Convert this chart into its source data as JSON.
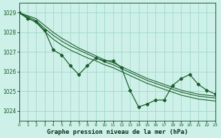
{
  "title": "Graphe pression niveau de la mer (hPa)",
  "bg_color": "#cdf0e8",
  "grid_color": "#a0d8c8",
  "line_color": "#1a5c2a",
  "x_ticks": [
    0,
    1,
    2,
    3,
    4,
    5,
    6,
    7,
    8,
    9,
    10,
    11,
    12,
    13,
    14,
    15,
    16,
    17,
    18,
    19,
    20,
    21,
    22,
    23
  ],
  "ylim": [
    1023.5,
    1029.5
  ],
  "yticks": [
    1024,
    1025,
    1026,
    1027,
    1028,
    1029
  ],
  "series_main": [
    1029.0,
    1028.7,
    1028.55,
    1028.1,
    1027.1,
    1026.85,
    1026.3,
    1025.85,
    1026.3,
    1026.7,
    1026.55,
    1026.55,
    1026.2,
    1025.05,
    1024.2,
    1024.35,
    1024.55,
    1024.55,
    1025.3,
    1025.65,
    1025.85,
    1025.35,
    1025.05,
    1024.85
  ],
  "series_ref1": [
    1029.0,
    1028.85,
    1028.7,
    1028.35,
    1028.0,
    1027.7,
    1027.45,
    1027.2,
    1027.0,
    1026.8,
    1026.6,
    1026.45,
    1026.25,
    1026.05,
    1025.85,
    1025.65,
    1025.5,
    1025.35,
    1025.2,
    1025.05,
    1024.95,
    1024.85,
    1024.8,
    1024.75
  ],
  "series_ref2": [
    1029.0,
    1028.8,
    1028.6,
    1028.2,
    1027.85,
    1027.55,
    1027.3,
    1027.1,
    1026.9,
    1026.7,
    1026.5,
    1026.35,
    1026.15,
    1025.95,
    1025.75,
    1025.55,
    1025.4,
    1025.25,
    1025.1,
    1024.95,
    1024.85,
    1024.75,
    1024.7,
    1024.65
  ],
  "series_ref3": [
    1029.0,
    1028.75,
    1028.5,
    1028.05,
    1027.65,
    1027.35,
    1027.1,
    1026.9,
    1026.7,
    1026.55,
    1026.35,
    1026.2,
    1026.0,
    1025.8,
    1025.6,
    1025.4,
    1025.25,
    1025.1,
    1024.95,
    1024.8,
    1024.7,
    1024.6,
    1024.55,
    1024.5
  ]
}
